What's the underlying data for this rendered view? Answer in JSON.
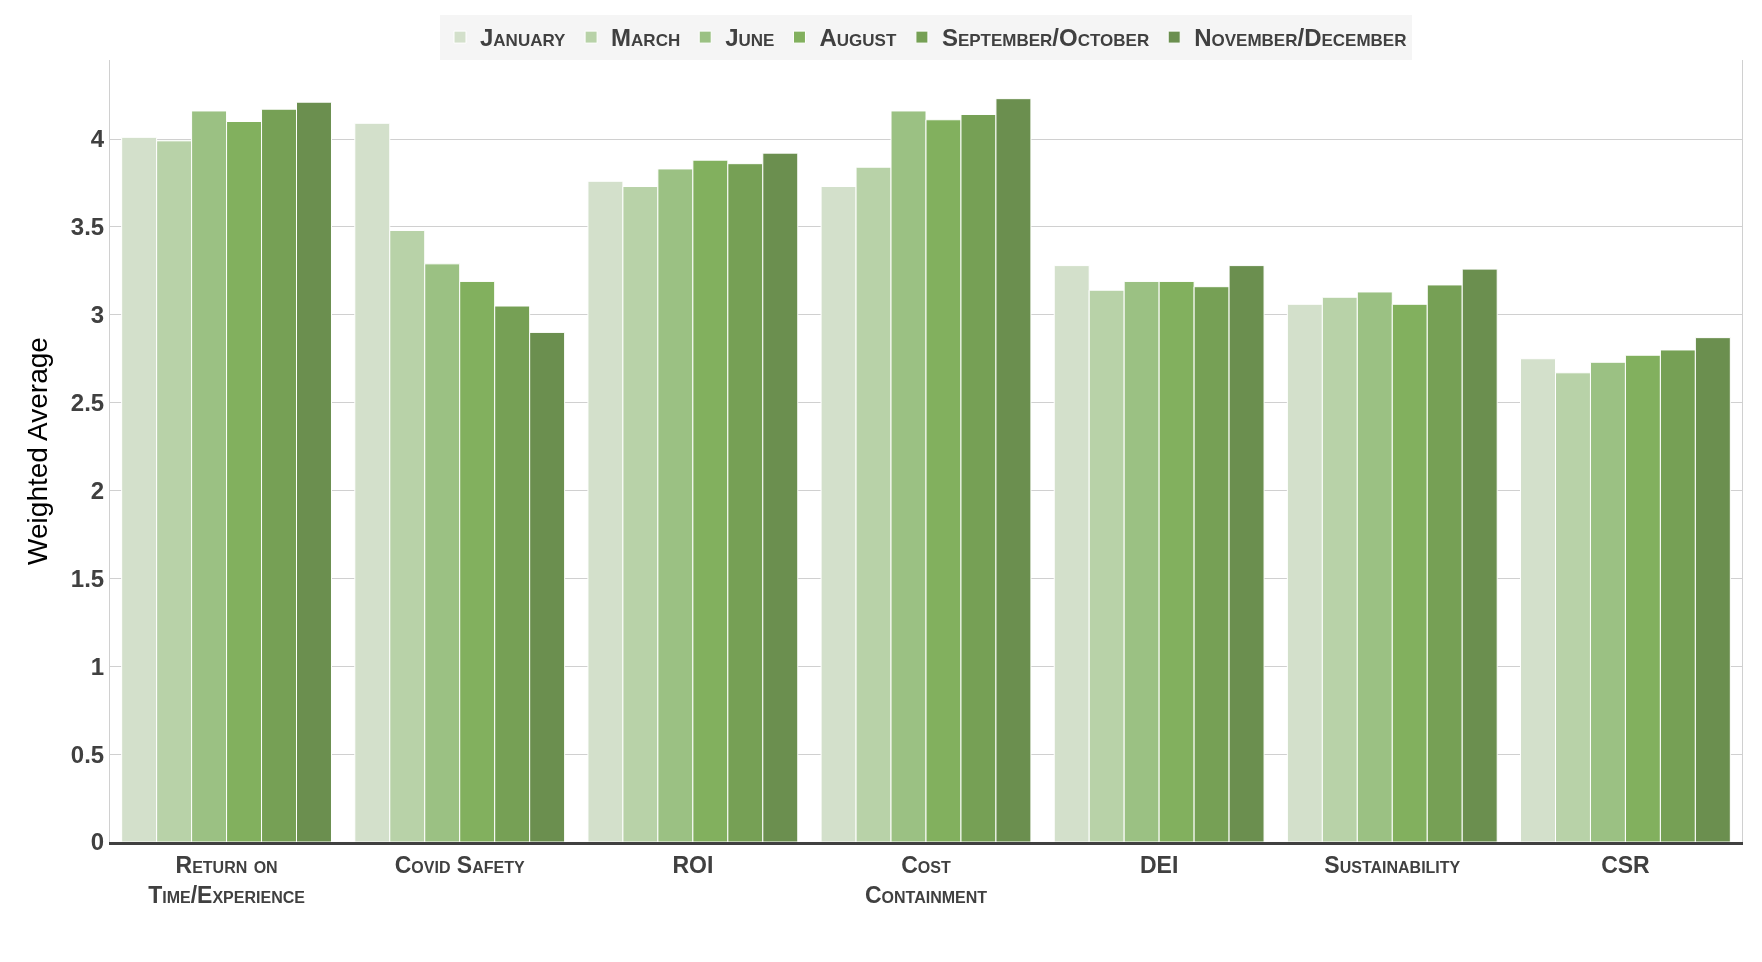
{
  "chart_data": {
    "type": "bar",
    "ylabel": "Weighted Average",
    "categories": [
      "Return on Time/Experience",
      "Covid Safety",
      "ROI",
      "Cost Containment",
      "DEI",
      "Sustainability",
      "CSR"
    ],
    "series": [
      {
        "name": "January",
        "color": "#d3e0cb",
        "values": [
          4.01,
          4.09,
          3.76,
          3.73,
          3.28,
          3.06,
          2.75
        ]
      },
      {
        "name": "March",
        "color": "#b8d2a8",
        "values": [
          3.99,
          3.48,
          3.73,
          3.84,
          3.14,
          3.1,
          2.67
        ]
      },
      {
        "name": "June",
        "color": "#9bc183",
        "values": [
          4.16,
          3.29,
          3.83,
          4.16,
          3.19,
          3.13,
          2.73
        ]
      },
      {
        "name": "August",
        "color": "#82b05e",
        "values": [
          4.1,
          3.19,
          3.88,
          4.11,
          3.19,
          3.06,
          2.77
        ]
      },
      {
        "name": "September/October",
        "color": "#76a055",
        "values": [
          4.17,
          3.05,
          3.86,
          4.14,
          3.16,
          3.17,
          2.8
        ]
      },
      {
        "name": "November/December",
        "color": "#6b8f4f",
        "values": [
          4.21,
          2.9,
          3.92,
          4.23,
          3.28,
          3.26,
          2.87
        ]
      }
    ],
    "ylim": [
      0,
      4.45
    ],
    "yticks": [
      0,
      0.5,
      1,
      1.5,
      2,
      2.5,
      3,
      3.5,
      4
    ],
    "grid": "y",
    "legend": "top"
  }
}
